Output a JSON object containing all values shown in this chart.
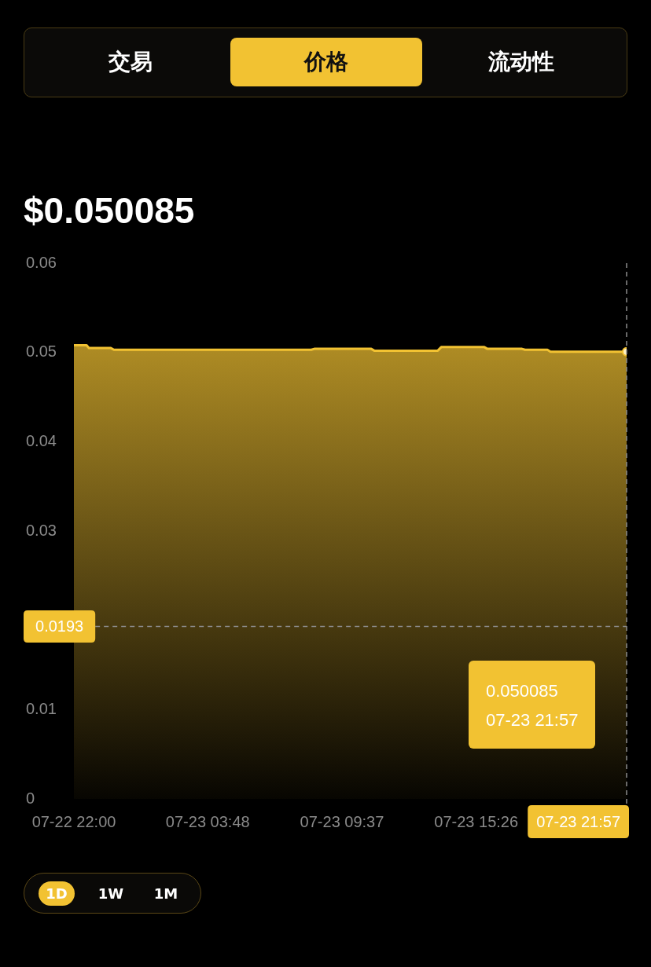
{
  "chart_data": {
    "type": "area",
    "title": "$0.050085",
    "annotations": [
      "交易",
      "价格",
      "流动性",
      "1D",
      "1W",
      "1M",
      "0.050085",
      "07-23 21:57"
    ],
    "x": [
      "--07-22T22:00",
      "--07-22T22:33",
      "--07-22T22:39",
      "--07-22T23:36",
      "--07-22T23:44",
      "--07-23T08:17",
      "--07-23T08:25",
      "--07-23T10:53",
      "--07-23T11:01",
      "--07-23T13:46",
      "--07-23T13:55",
      "--07-23T15:47",
      "--07-23T15:55",
      "--07-23T17:25",
      "--07-23T17:33",
      "--07-23T18:31",
      "--07-23T18:39",
      "--07-23T21:57"
    ],
    "series": [
      {
        "color": "#f2c232",
        "values": [
          0.0508,
          0.0508,
          0.0505,
          0.0505,
          0.0503,
          0.0503,
          0.0504,
          0.0504,
          0.0502,
          0.0502,
          0.0506,
          0.0506,
          0.0504,
          0.0504,
          0.0503,
          0.0503,
          0.050085,
          0.050085
        ]
      }
    ],
    "xlim": [
      "--07-22T22:00",
      "--07-23T21:57"
    ],
    "xticks": [
      {
        "value": "--07-22T22:00",
        "label": "07-22 22:00"
      },
      {
        "value": "--07-23T03:48",
        "label": "07-23 03:48"
      },
      {
        "value": "--07-23T09:37",
        "label": "07-23 09:37"
      },
      {
        "value": "--07-23T15:26",
        "label": "07-23 15:26"
      }
    ],
    "ylim": [
      0,
      0.06
    ],
    "yticks": [
      0,
      0.01,
      0.03,
      0.04,
      0.05,
      0.06
    ],
    "ref_lines": [
      {
        "axis": "y",
        "value": 0.0193,
        "label": "0.0193",
        "color": "#8c8c8c",
        "line_style": "dashed"
      },
      {
        "axis": "x",
        "value": "--07-23T21:57",
        "label": "07-23 21:57",
        "color": "#8c8c8c",
        "line_style": "dashed"
      }
    ]
  }
}
